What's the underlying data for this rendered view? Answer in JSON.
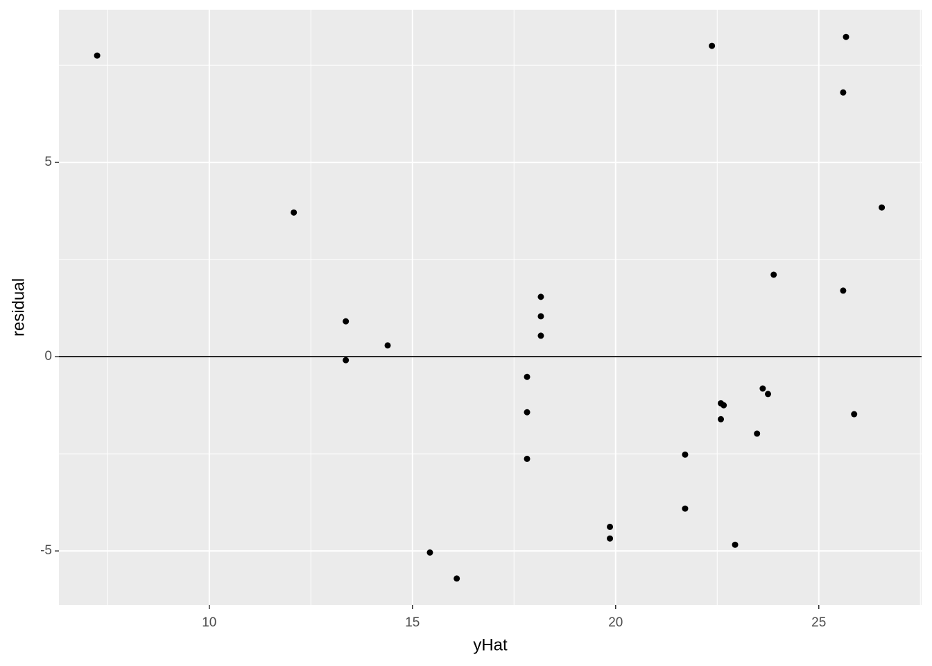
{
  "chart_data": {
    "type": "scatter",
    "x_label": "yHat",
    "y_label": "residual",
    "x": [
      7.24,
      12.08,
      13.36,
      13.36,
      14.39,
      15.43,
      16.09,
      17.82,
      17.82,
      17.82,
      18.16,
      18.16,
      18.16,
      19.86,
      19.86,
      21.71,
      21.71,
      22.37,
      22.59,
      22.66,
      22.59,
      22.94,
      23.48,
      23.62,
      23.75,
      23.89,
      25.6,
      25.6,
      25.67,
      25.87,
      26.55
    ],
    "values": [
      7.75,
      3.71,
      0.91,
      -0.09,
      0.29,
      -5.04,
      -5.71,
      -0.52,
      -1.43,
      -2.63,
      1.54,
      1.04,
      0.54,
      -4.38,
      -4.68,
      -2.52,
      -3.91,
      8.0,
      -1.2,
      -1.25,
      -1.61,
      -4.84,
      -1.98,
      -0.82,
      -0.96,
      2.11,
      6.8,
      1.7,
      8.23,
      -1.48,
      3.84
    ],
    "color": "#000000",
    "xlim": [
      6.3,
      27.53
    ],
    "ylim": [
      -6.39,
      8.93
    ],
    "xticks": [
      10,
      15,
      20,
      25
    ],
    "yticks": [
      -5,
      0,
      5
    ],
    "hline": 0,
    "grid": true
  }
}
